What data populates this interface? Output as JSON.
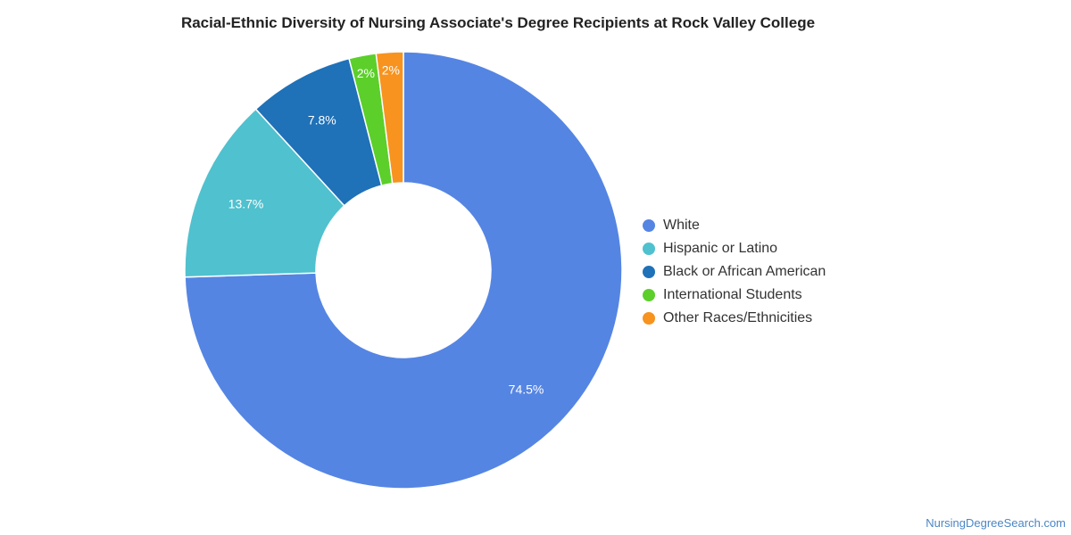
{
  "chart_data": {
    "type": "pie",
    "subtype": "donut",
    "title": "Racial-Ethnic Diversity of Nursing Associate's Degree Recipients at Rock Valley College",
    "categories": [
      "White",
      "Hispanic or Latino",
      "Black or African American",
      "International Students",
      "Other Races/Ethnicities"
    ],
    "values": [
      74.5,
      13.7,
      7.8,
      2,
      2
    ],
    "data_labels": [
      "74.5%",
      "13.7%",
      "7.8%",
      "2%",
      "2%"
    ],
    "colors": [
      "#5585e3",
      "#50c1ce",
      "#1f71b8",
      "#5ccf2a",
      "#f7931e"
    ],
    "legend_position": "right"
  },
  "watermark": "NursingDegreeSearch.com"
}
